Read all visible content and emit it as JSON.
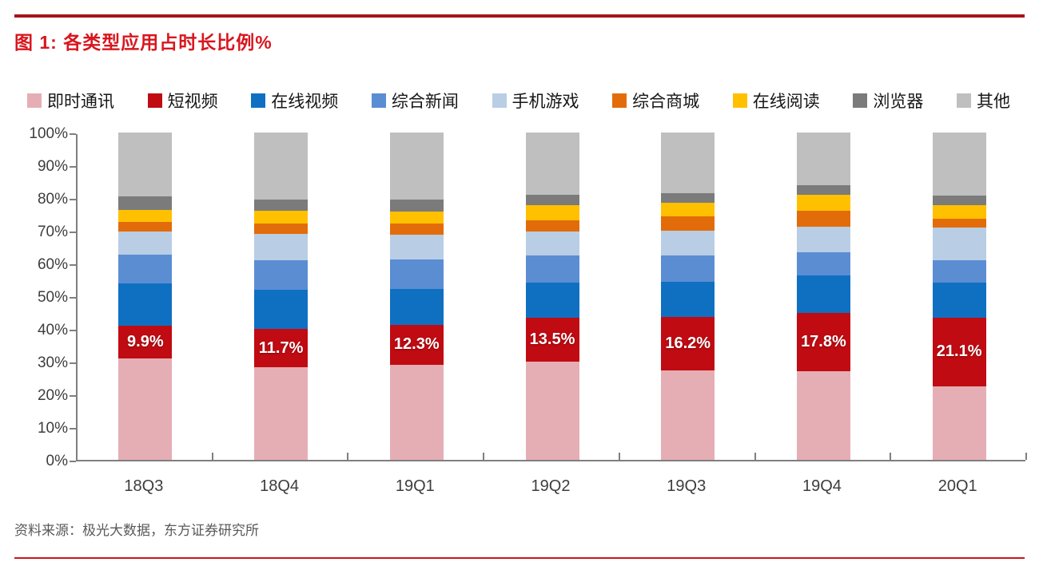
{
  "title": "图 1: 各类型应用占时长比例%",
  "source": "资料来源：极光大数据，东方证券研究所",
  "accent_colors": {
    "title_red": "#d9161e",
    "top_rule": "#a5131a",
    "bottom_rule": "#c8161c",
    "axis_gray": "#7f7f7f"
  },
  "chart_data": {
    "type": "bar",
    "stacked": true,
    "unit": "%",
    "title": "各类型应用占时长比例%",
    "legend_position": "top",
    "grid": false,
    "ylim": [
      0,
      100
    ],
    "ytick_labels": [
      "0%",
      "10%",
      "20%",
      "30%",
      "40%",
      "50%",
      "60%",
      "70%",
      "80%",
      "90%",
      "100%"
    ],
    "categories": [
      "18Q3",
      "18Q4",
      "19Q1",
      "19Q2",
      "19Q3",
      "19Q4",
      "20Q1"
    ],
    "series": [
      {
        "id": "instant-messaging",
        "name": "即时通讯",
        "color": "#e5aeb5",
        "values": [
          31.0,
          28.3,
          29.0,
          30.0,
          27.4,
          27.0,
          22.4
        ]
      },
      {
        "id": "short-video",
        "name": "短视频",
        "color": "#c00b12",
        "values": [
          9.9,
          11.7,
          12.3,
          13.5,
          16.2,
          17.8,
          21.1
        ],
        "data_labels": [
          "9.9%",
          "11.7%",
          "12.3%",
          "13.5%",
          "16.2%",
          "17.8%",
          "21.1%"
        ]
      },
      {
        "id": "online-video",
        "name": "在线视频",
        "color": "#0f70c2",
        "values": [
          12.9,
          12.0,
          10.8,
          10.6,
          10.8,
          11.6,
          10.6
        ]
      },
      {
        "id": "news",
        "name": "综合新闻",
        "color": "#5b8dd3",
        "values": [
          8.8,
          9.1,
          9.1,
          8.3,
          8.0,
          7.0,
          7.0
        ]
      },
      {
        "id": "mobile-games",
        "name": "手机游戏",
        "color": "#b9cde5",
        "values": [
          7.2,
          8.0,
          7.6,
          7.3,
          7.6,
          7.9,
          9.9
        ]
      },
      {
        "id": "shopping-mall",
        "name": "综合商城",
        "color": "#e36c0a",
        "values": [
          2.8,
          3.0,
          3.5,
          3.5,
          4.3,
          4.8,
          2.6
        ]
      },
      {
        "id": "online-reading",
        "name": "在线阅读",
        "color": "#ffc000",
        "values": [
          3.8,
          3.9,
          3.6,
          4.6,
          4.2,
          4.8,
          4.3
        ]
      },
      {
        "id": "browser",
        "name": "浏览器",
        "color": "#7b7b7b",
        "values": [
          4.2,
          3.5,
          3.6,
          3.3,
          3.0,
          3.1,
          2.8
        ]
      },
      {
        "id": "other",
        "name": "其他",
        "color": "#bfbfbf",
        "values": [
          19.4,
          20.5,
          20.5,
          18.9,
          18.5,
          16.0,
          19.3
        ]
      }
    ]
  }
}
